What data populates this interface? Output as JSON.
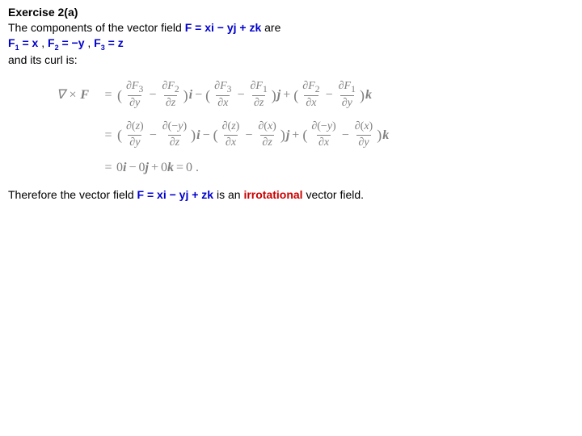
{
  "header": {
    "title": "Exercise 2(a)",
    "intro_pre": "The components of the vector field ",
    "field_expr": "F = xi − yj + zk",
    "intro_post": " are",
    "comp_line_parts": {
      "f1": "F",
      "s1": "1",
      "e1": " = x",
      "sep1": " , ",
      "f2": "F",
      "s2": "2",
      "e2": " = −y",
      "sep2": " , ",
      "f3": "F",
      "s3": "3",
      "e3": " = z"
    },
    "curl_line": "and its curl is:"
  },
  "math": {
    "lhs": "∇ × F",
    "row1": "(∂F₃/∂y − ∂F₂/∂z)i − (∂F₃/∂x − ∂F₁/∂z)j + (∂F₂/∂x − ∂F₁/∂y)k",
    "row2": "(∂(z)/∂y − ∂(−y)/∂z)i − (∂(z)/∂x − ∂(x)/∂z)j + (∂(−y)/∂x − ∂(x)/∂y)k",
    "row3": "0i − 0j + 0k = 0 .",
    "text_color": "#808080",
    "fontsize": 16
  },
  "conclusion": {
    "pre": "Therefore the vector field ",
    "field_expr": "F = xi − yj + zk",
    "mid": " is an ",
    "irr": "irrotational",
    "post": " vector field."
  }
}
